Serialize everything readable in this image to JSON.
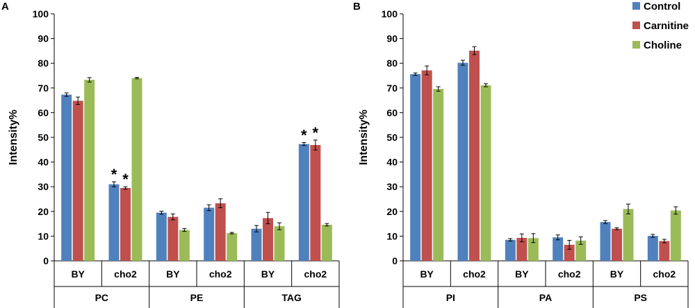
{
  "legend": [
    {
      "name": "Control",
      "color": "#4f81bd"
    },
    {
      "name": "Carnitine",
      "color": "#c0504d"
    },
    {
      "name": "Choline",
      "color": "#9bbb59"
    }
  ],
  "chart_data": [
    {
      "type": "bar",
      "panel": "A",
      "ylabel": "Intensity%",
      "ylim": [
        0,
        100
      ],
      "yticks": [
        0,
        10,
        20,
        30,
        40,
        50,
        60,
        70,
        80,
        90,
        100
      ],
      "groups": [
        {
          "label": "PC",
          "categories": [
            "BY",
            "cho2"
          ]
        },
        {
          "label": "PE",
          "categories": [
            "BY",
            "cho2"
          ]
        },
        {
          "label": "TAG",
          "categories": [
            "BY",
            "cho2"
          ]
        }
      ],
      "categories": [
        "BY",
        "cho2",
        "BY",
        "cho2",
        "BY",
        "cho2"
      ],
      "series": [
        {
          "name": "Control",
          "values": [
            67.3,
            31.0,
            19.5,
            21.5,
            13.0,
            47.3
          ],
          "errors": [
            0.7,
            1.0,
            0.6,
            1.2,
            1.3,
            0.6
          ]
        },
        {
          "name": "Carnitine",
          "values": [
            64.8,
            29.5,
            17.8,
            23.3,
            17.3,
            46.9
          ],
          "errors": [
            1.5,
            0.5,
            1.2,
            1.8,
            2.3,
            2.0
          ]
        },
        {
          "name": "Choline",
          "values": [
            73.3,
            74.0,
            12.5,
            11.2,
            14.0,
            14.6
          ],
          "errors": [
            0.9,
            0.3,
            0.6,
            0.3,
            1.4,
            0.5
          ]
        }
      ],
      "annotations": [
        {
          "text": "*",
          "category_index": 1,
          "series": "Control"
        },
        {
          "text": "*",
          "category_index": 1,
          "series": "Carnitine"
        },
        {
          "text": "*",
          "category_index": 5,
          "series": "Control"
        },
        {
          "text": "*",
          "category_index": 5,
          "series": "Carnitine"
        }
      ]
    },
    {
      "type": "bar",
      "panel": "B",
      "ylabel": "Intensity%",
      "ylim": [
        0,
        100
      ],
      "yticks": [
        0,
        10,
        20,
        30,
        40,
        50,
        60,
        70,
        80,
        90,
        100
      ],
      "groups": [
        {
          "label": "PI",
          "categories": [
            "BY",
            "cho2"
          ]
        },
        {
          "label": "PA",
          "categories": [
            "BY",
            "cho2"
          ]
        },
        {
          "label": "PS",
          "categories": [
            "BY",
            "cho2"
          ]
        }
      ],
      "categories": [
        "BY",
        "cho2",
        "BY",
        "cho2",
        "BY",
        "cho2"
      ],
      "series": [
        {
          "name": "Control",
          "values": [
            75.6,
            80.2,
            8.5,
            9.5,
            15.7,
            10.1
          ],
          "errors": [
            0.5,
            1.0,
            0.5,
            1.0,
            0.6,
            0.6
          ]
        },
        {
          "name": "Carnitine",
          "values": [
            77.1,
            85.1,
            9.3,
            6.5,
            13.0,
            8.0
          ],
          "errors": [
            1.8,
            1.6,
            1.6,
            1.8,
            0.4,
            0.7
          ]
        },
        {
          "name": "Choline",
          "values": [
            69.6,
            71.1,
            9.2,
            8.2,
            21.0,
            20.4
          ],
          "errors": [
            0.9,
            0.6,
            1.8,
            1.5,
            2.0,
            1.5
          ]
        }
      ],
      "annotations": []
    }
  ]
}
